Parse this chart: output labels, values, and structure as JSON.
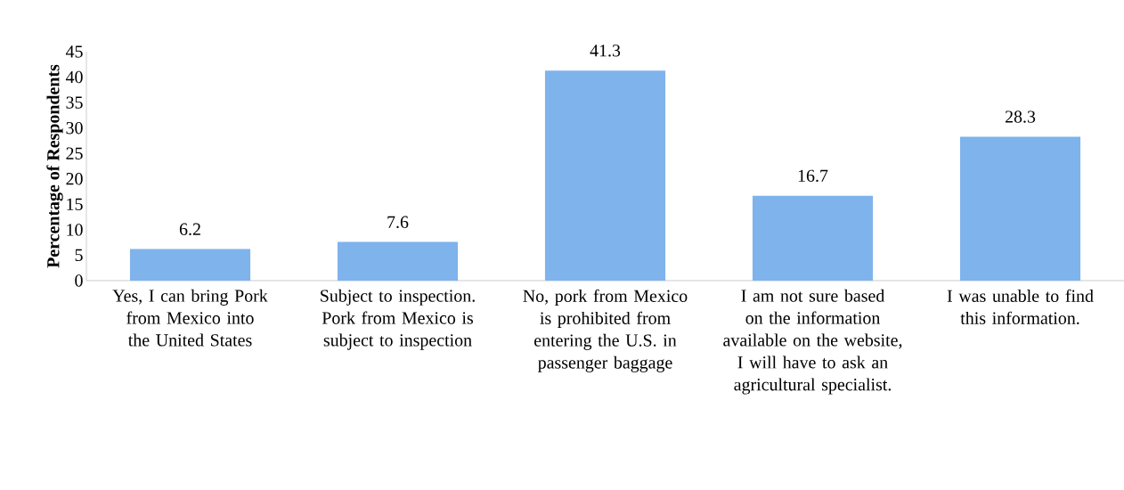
{
  "chart_data": {
    "type": "bar",
    "ylabel": "Percentage of Respondents",
    "categories": [
      "Yes, I can bring Pork from Mexico into the United States",
      "Subject to inspection. Pork from Mexico is subject to inspection",
      "No, pork from Mexico is prohibited from entering the U.S. in passenger baggage",
      "I am not sure based on the information available on the website, I will have to ask an agricultural specialist.",
      "I was unable to find this information."
    ],
    "values": [
      6.2,
      7.6,
      41.3,
      16.7,
      28.3
    ],
    "color": "#7fb3ec",
    "ylim": [
      0,
      45
    ],
    "yticks": [
      0,
      5,
      10,
      15,
      20,
      25,
      30,
      35,
      40,
      45
    ],
    "data_labels": true,
    "grid": false
  }
}
